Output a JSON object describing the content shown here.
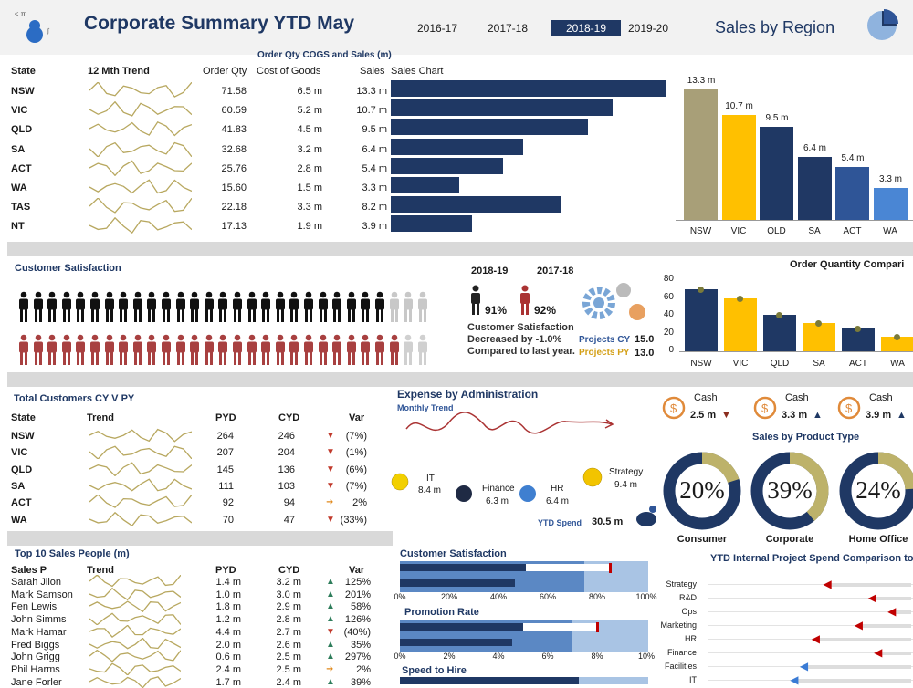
{
  "header": {
    "title": "Corporate Summary YTD May",
    "years": [
      "2016-17",
      "2017-18",
      "2018-19",
      "2019-20"
    ],
    "active_year": "2018-19",
    "right_title": "Sales by Region"
  },
  "sales": {
    "section_title": "Order Qty COGS and Sales (m)",
    "columns": [
      "State",
      "12 Mth Trend",
      "Order Qty",
      "Cost of Goods",
      "Sales",
      "Sales Chart"
    ],
    "rows": [
      {
        "state": "NSW",
        "qty": "71.58",
        "cogs": "6.5 m",
        "sales": "13.3 m",
        "v": 13.3
      },
      {
        "state": "VIC",
        "qty": "60.59",
        "cogs": "5.2 m",
        "sales": "10.7 m",
        "v": 10.7
      },
      {
        "state": "QLD",
        "qty": "41.83",
        "cogs": "4.5 m",
        "sales": "9.5 m",
        "v": 9.5
      },
      {
        "state": "SA",
        "qty": "32.68",
        "cogs": "3.2 m",
        "sales": "6.4 m",
        "v": 6.4
      },
      {
        "state": "ACT",
        "qty": "25.76",
        "cogs": "2.8 m",
        "sales": "5.4 m",
        "v": 5.4
      },
      {
        "state": "WA",
        "qty": "15.60",
        "cogs": "1.5 m",
        "sales": "3.3 m",
        "v": 3.3
      },
      {
        "state": "TAS",
        "qty": "22.18",
        "cogs": "3.3 m",
        "sales": "8.2 m",
        "v": 8.2
      },
      {
        "state": "NT",
        "qty": "17.13",
        "cogs": "1.9 m",
        "sales": "3.9 m",
        "v": 3.9
      }
    ]
  },
  "chart_data": [
    {
      "type": "bar",
      "categories": [
        "NSW",
        "VIC",
        "QLD",
        "SA",
        "ACT",
        "WA"
      ],
      "values": [
        13.3,
        10.7,
        9.5,
        6.4,
        5.4,
        3.3
      ],
      "labels": [
        "13.3 m",
        "10.7 m",
        "9.5 m",
        "6.4 m",
        "5.4 m",
        "3.3 m"
      ],
      "colors": [
        "#a89f78",
        "#ffc000",
        "#1f3864",
        "#203864",
        "#2f5597",
        "#4a86d4"
      ]
    },
    {
      "type": "bar",
      "title": "Order Quantity Compari",
      "categories": [
        "NSW",
        "VIC",
        "QLD",
        "SA",
        "ACT",
        "WA"
      ],
      "values": [
        70,
        59,
        41,
        32,
        26,
        16
      ],
      "markers": [
        69,
        58,
        40,
        31,
        25,
        15
      ],
      "colors": [
        "#1f3864",
        "#ffc000",
        "#1f3864",
        "#ffc000",
        "#1f3864",
        "#ffc000"
      ],
      "ylim": [
        0,
        80
      ],
      "yticks": [
        "80",
        "60",
        "40",
        "20",
        "0"
      ]
    }
  ],
  "satisfaction": {
    "title": "Customer Satisfaction",
    "cy": "2018-19",
    "py": "2017-18",
    "cy_pct": "91%",
    "py_pct": "92%",
    "note1": "Customer Satisfaction",
    "note2": "Decreased by -1.0%",
    "note3": "Compared to last year.",
    "proj_cy_label": "Projects CY",
    "proj_cy": "15.0",
    "proj_py_label": "Projects PY",
    "proj_py": "13.0",
    "figures_total": 29,
    "dark_count": 26,
    "red_count": 27
  },
  "customers": {
    "title": "Total Customers CY V PY",
    "columns": [
      "State",
      "Trend",
      "PYD",
      "CYD",
      "Var"
    ],
    "rows": [
      {
        "state": "NSW",
        "pyd": "264",
        "cyd": "246",
        "var": "(7%)",
        "dir": "down"
      },
      {
        "state": "VIC",
        "pyd": "207",
        "cyd": "204",
        "var": "(1%)",
        "dir": "down"
      },
      {
        "state": "QLD",
        "pyd": "145",
        "cyd": "136",
        "var": "(6%)",
        "dir": "down"
      },
      {
        "state": "SA",
        "pyd": "111",
        "cyd": "103",
        "var": "(7%)",
        "dir": "down"
      },
      {
        "state": "ACT",
        "pyd": "92",
        "cyd": "94",
        "var": "2%",
        "dir": "flat"
      },
      {
        "state": "WA",
        "pyd": "70",
        "cyd": "47",
        "var": "(33%)",
        "dir": "down"
      }
    ]
  },
  "expense": {
    "title": "Expense by Administration",
    "subtitle": "Monthly Trend",
    "items": [
      {
        "name": "IT",
        "value": "8.4 m"
      },
      {
        "name": "Finance",
        "value": "6.3 m"
      },
      {
        "name": "HR",
        "value": "6.4 m"
      },
      {
        "name": "Strategy",
        "value": "9.4 m"
      }
    ],
    "ytd_label": "YTD Spend",
    "ytd": "30.5 m"
  },
  "cash": [
    {
      "label": "Cash",
      "value": "2.5 m",
      "arrow": "▼"
    },
    {
      "label": "Cash",
      "value": "3.3 m",
      "arrow": "▲"
    },
    {
      "label": "Cash",
      "value": "3.9 m",
      "arrow": "▲"
    }
  ],
  "product": {
    "title": "Sales by Product Type",
    "items": [
      {
        "pct": "20%",
        "name": "Consumer",
        "v": 0.2
      },
      {
        "pct": "39%",
        "name": "Corporate",
        "v": 0.39
      },
      {
        "pct": "24%",
        "name": "Home Office",
        "v": 0.24
      }
    ]
  },
  "people": {
    "title": "Top 10 Sales People (m)",
    "columns": [
      "Sales P",
      "Trend",
      "PYD",
      "CYD",
      "Var"
    ],
    "rows": [
      {
        "name": "Sarah Jilon",
        "pyd": "1.4 m",
        "cyd": "3.2 m",
        "var": "125%",
        "dir": "up"
      },
      {
        "name": "Mark Samson",
        "pyd": "1.0 m",
        "cyd": "3.0 m",
        "var": "201%",
        "dir": "up"
      },
      {
        "name": "Fen Lewis",
        "pyd": "1.8 m",
        "cyd": "2.9 m",
        "var": "58%",
        "dir": "up"
      },
      {
        "name": "John Simms",
        "pyd": "1.2 m",
        "cyd": "2.8 m",
        "var": "126%",
        "dir": "up"
      },
      {
        "name": "Mark Hamar",
        "pyd": "4.4 m",
        "cyd": "2.7 m",
        "var": "(40%)",
        "dir": "down"
      },
      {
        "name": "Fred Biggs",
        "pyd": "2.0 m",
        "cyd": "2.6 m",
        "var": "35%",
        "dir": "up"
      },
      {
        "name": "John Grigg",
        "pyd": "0.6 m",
        "cyd": "2.5 m",
        "var": "297%",
        "dir": "up"
      },
      {
        "name": "Phil Harms",
        "pyd": "2.4 m",
        "cyd": "2.5 m",
        "var": "2%",
        "dir": "flat"
      },
      {
        "name": "Jane Forler",
        "pyd": "1.7 m",
        "cyd": "2.4 m",
        "var": "39%",
        "dir": "up"
      }
    ]
  },
  "bullets": {
    "cs_title": "Customer Satisfaction",
    "cs_ticks": [
      "0%",
      "20%",
      "40%",
      "60%",
      "80%",
      "100%"
    ],
    "pr_title": "Promotion Rate",
    "pr_ticks": [
      "0%",
      "2%",
      "4%",
      "6%",
      "8%",
      "10%"
    ],
    "sh_title": "Speed to Hire"
  },
  "projects": {
    "title": "YTD Internal Project Spend Comparison to Pla",
    "labels": [
      "Strategy",
      "R&D",
      "Ops",
      "Marketing",
      "HR",
      "Finance",
      "Facilities",
      "IT"
    ]
  }
}
